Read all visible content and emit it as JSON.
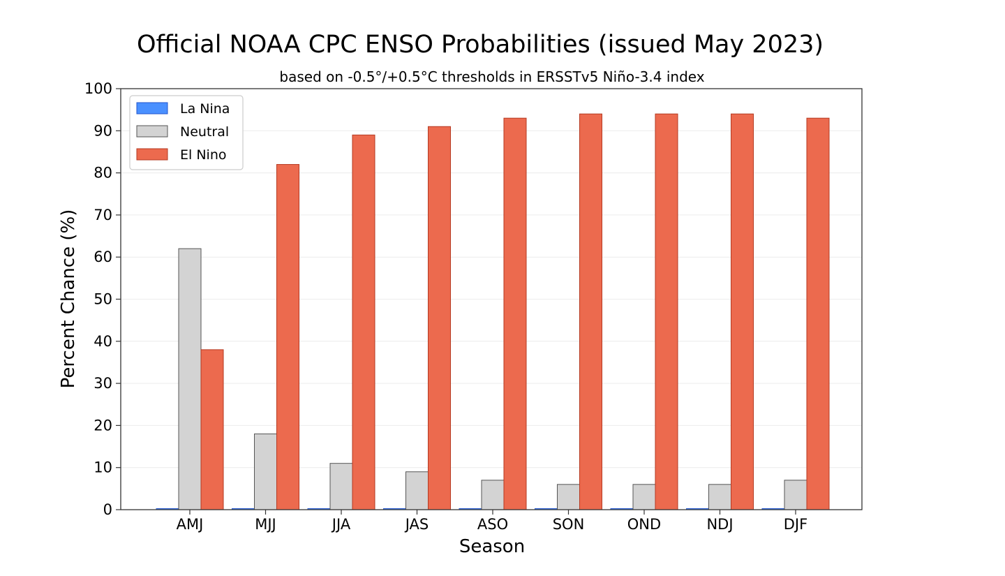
{
  "chart_data": {
    "type": "bar",
    "title": "Official NOAA CPC ENSO Probabilities (issued May 2023)",
    "subtitle": "based on -0.5°/+0.5°C thresholds in ERSSTv5 Niño-3.4 index",
    "xlabel": "Season",
    "ylabel": "Percent Chance (%)",
    "ylim": [
      0,
      100
    ],
    "yticks": [
      "0",
      "10",
      "20",
      "30",
      "40",
      "50",
      "60",
      "70",
      "80",
      "90",
      "100"
    ],
    "grid": "horizontal",
    "legend_position": "top-left",
    "categories": [
      "AMJ",
      "MJJ",
      "JJA",
      "JAS",
      "ASO",
      "SON",
      "OND",
      "NDJ",
      "DJF"
    ],
    "series": [
      {
        "name": "La Nina",
        "color": "#4a90ff",
        "values": [
          0,
          0,
          0,
          0,
          0,
          0,
          0,
          0,
          0
        ]
      },
      {
        "name": "Neutral",
        "color": "#d3d3d3",
        "values": [
          62,
          18,
          11,
          9,
          7,
          6,
          6,
          6,
          7
        ]
      },
      {
        "name": "El Nino",
        "color": "#ec6a4e",
        "values": [
          38,
          82,
          89,
          91,
          93,
          94,
          94,
          94,
          93
        ]
      }
    ]
  }
}
